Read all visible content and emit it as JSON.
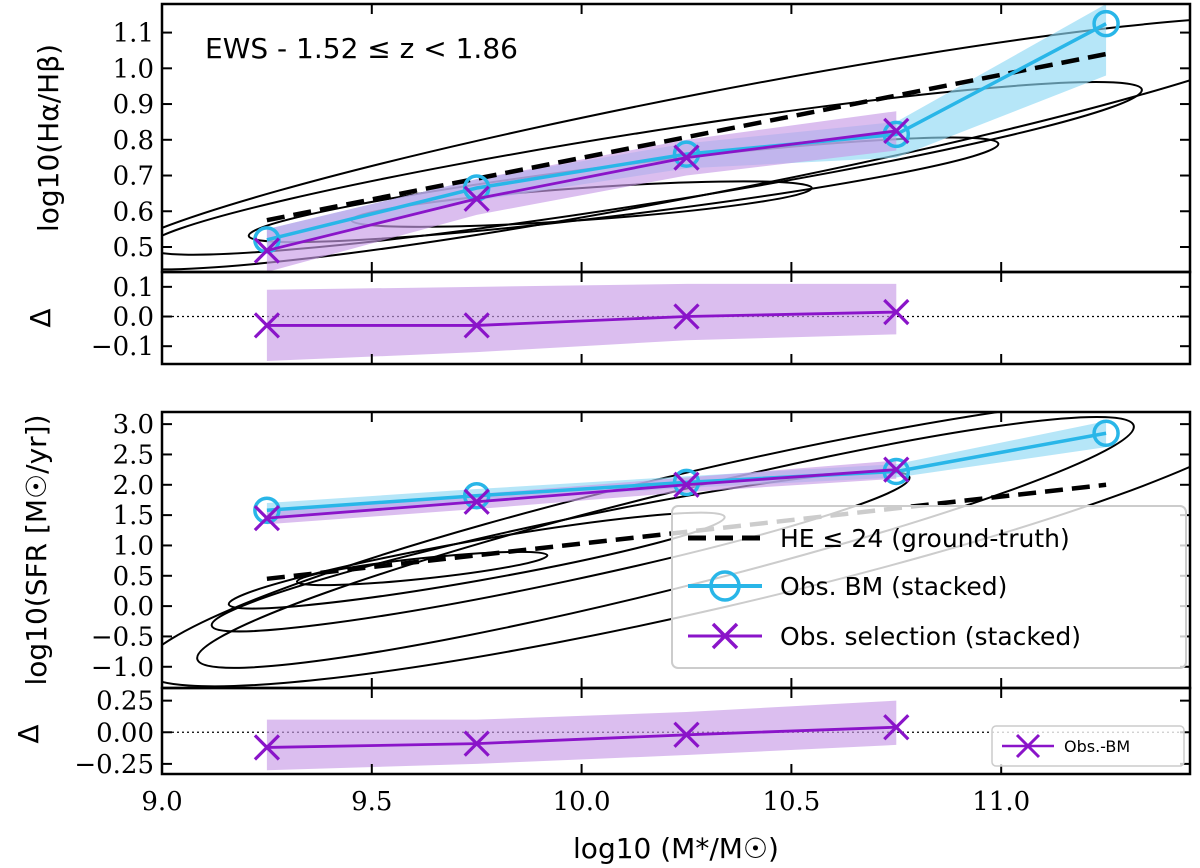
{
  "chart_data": [
    {
      "id": "p1",
      "type": "line",
      "ylabel": "log10(Hα/Hβ)",
      "annotation": "EWS - 1.52 ≤ z < 1.86",
      "xlim": [
        9.0,
        11.45
      ],
      "ylim": [
        0.43,
        1.18
      ],
      "yticks": [
        0.5,
        0.6,
        0.7,
        0.8,
        0.9,
        1.0,
        1.1
      ],
      "ytick_labels": [
        "0.5",
        "0.6",
        "0.7",
        "0.8",
        "0.9",
        "1.0",
        "1.1"
      ],
      "ground_truth": {
        "x": [
          9.25,
          11.25
        ],
        "y": [
          0.575,
          1.04
        ]
      },
      "series": [
        {
          "name": "Obs. BM (stacked)",
          "color": "#29b6e8",
          "band_color": "#8fd8f5",
          "marker": "circle",
          "x": [
            9.25,
            9.75,
            10.25,
            10.75,
            11.25
          ],
          "y": [
            0.52,
            0.665,
            0.76,
            0.815,
            1.125
          ],
          "lo": [
            0.49,
            0.63,
            0.72,
            0.75,
            0.98
          ],
          "hi": [
            0.55,
            0.69,
            0.79,
            0.85,
            1.18
          ]
        },
        {
          "name": "Obs. selection (stacked)",
          "color": "#8a14c9",
          "band_color": "#c79be6",
          "marker": "x",
          "x": [
            9.25,
            9.75,
            10.25,
            10.75
          ],
          "y": [
            0.49,
            0.635,
            0.75,
            0.825
          ],
          "lo": [
            0.43,
            0.59,
            0.7,
            0.77
          ],
          "hi": [
            0.55,
            0.69,
            0.8,
            0.88
          ]
        }
      ],
      "contours": [
        {
          "center": [
            10.0,
            0.62
          ],
          "rx": 0.55,
          "ry": 0.045,
          "angle_deg": -4
        },
        {
          "center": [
            10.1,
            0.66
          ],
          "rx": 0.9,
          "ry": 0.07,
          "angle_deg": -7
        },
        {
          "center": [
            10.15,
            0.72
          ],
          "rx": 1.2,
          "ry": 0.1,
          "angle_deg": -9
        },
        {
          "center": [
            10.3,
            0.79
          ],
          "rx": 1.45,
          "ry": 0.14,
          "angle_deg": -11
        }
      ]
    },
    {
      "id": "p1r",
      "type": "line",
      "ylabel": "Δ",
      "xlim": [
        9.0,
        11.45
      ],
      "ylim": [
        -0.16,
        0.15
      ],
      "yticks": [
        -0.1,
        0.0,
        0.1
      ],
      "ytick_labels": [
        "−0.1",
        "0.0",
        "0.1"
      ],
      "zero_line": true,
      "series": [
        {
          "name": "Obs.-BM",
          "color": "#8a14c9",
          "band_color": "#c79be6",
          "marker": "x",
          "x": [
            9.25,
            9.75,
            10.25,
            10.75
          ],
          "y": [
            -0.03,
            -0.03,
            0.0,
            0.015
          ],
          "lo": [
            -0.15,
            -0.12,
            -0.08,
            -0.06
          ],
          "hi": [
            0.09,
            0.1,
            0.11,
            0.11
          ]
        }
      ]
    },
    {
      "id": "p2",
      "type": "line",
      "ylabel": "log10(SFR [M☉/yr])",
      "xlim": [
        9.0,
        11.45
      ],
      "ylim": [
        -1.35,
        3.2
      ],
      "yticks": [
        -1.0,
        -0.5,
        0.0,
        0.5,
        1.0,
        1.5,
        2.0,
        2.5,
        3.0
      ],
      "ytick_labels": [
        "−1.0",
        "−0.5",
        "0.0",
        "0.5",
        "1.0",
        "1.5",
        "2.0",
        "2.5",
        "3.0"
      ],
      "ground_truth": {
        "x": [
          9.25,
          11.25
        ],
        "y": [
          0.45,
          2.0
        ]
      },
      "series": [
        {
          "name": "Obs. BM (stacked)",
          "color": "#29b6e8",
          "band_color": "#8fd8f5",
          "marker": "circle",
          "x": [
            9.25,
            9.75,
            10.25,
            10.75,
            11.25
          ],
          "y": [
            1.58,
            1.82,
            2.04,
            2.22,
            2.85
          ],
          "lo": [
            1.45,
            1.72,
            1.95,
            2.12,
            2.62
          ],
          "hi": [
            1.7,
            1.93,
            2.14,
            2.34,
            3.05
          ]
        },
        {
          "name": "Obs. selection (stacked)",
          "color": "#8a14c9",
          "band_color": "#c79be6",
          "marker": "x",
          "x": [
            9.25,
            9.75,
            10.25,
            10.75
          ],
          "y": [
            1.45,
            1.72,
            2.0,
            2.25
          ],
          "lo": [
            1.35,
            1.6,
            1.88,
            2.1
          ],
          "hi": [
            1.55,
            1.85,
            2.12,
            2.4
          ]
        }
      ],
      "contours": [
        {
          "center": [
            9.62,
            0.62
          ],
          "rx": 0.3,
          "ry": 0.17,
          "angle_deg": -6
        },
        {
          "center": [
            9.75,
            0.75
          ],
          "rx": 0.6,
          "ry": 0.33,
          "angle_deg": -10
        },
        {
          "center": [
            9.95,
            0.9
          ],
          "rx": 0.85,
          "ry": 0.5,
          "angle_deg": -12
        },
        {
          "center": [
            10.2,
            1.05
          ],
          "rx": 1.15,
          "ry": 0.78,
          "angle_deg": -14
        },
        {
          "center": [
            10.3,
            1.1
          ],
          "rx": 1.38,
          "ry": 1.15,
          "angle_deg": -13
        }
      ]
    },
    {
      "id": "p2r",
      "type": "line",
      "ylabel": "Δ",
      "xlabel": "log10 (M*/M☉)",
      "xlim": [
        9.0,
        11.45
      ],
      "ylim": [
        -0.33,
        0.35
      ],
      "yticks": [
        -0.25,
        0.0,
        0.25
      ],
      "ytick_labels": [
        "−0.25",
        "0.00",
        "0.25"
      ],
      "xticks": [
        9.0,
        9.5,
        10.0,
        10.5,
        11.0
      ],
      "xtick_labels": [
        "9.0",
        "9.5",
        "10.0",
        "10.5",
        "11.0"
      ],
      "zero_line": true,
      "series": [
        {
          "name": "Obs.-BM",
          "color": "#8a14c9",
          "band_color": "#c79be6",
          "marker": "x",
          "x": [
            9.25,
            9.75,
            10.25,
            10.75
          ],
          "y": [
            -0.12,
            -0.09,
            -0.02,
            0.04
          ],
          "lo": [
            -0.3,
            -0.25,
            -0.18,
            -0.1
          ],
          "hi": [
            0.1,
            0.1,
            0.16,
            0.25
          ]
        }
      ]
    }
  ],
  "legend": {
    "entries": [
      "HE ≤ 24 (ground-truth)",
      "Obs. BM (stacked)",
      "Obs. selection (stacked)"
    ],
    "inset_entry": "Obs.-BM"
  }
}
